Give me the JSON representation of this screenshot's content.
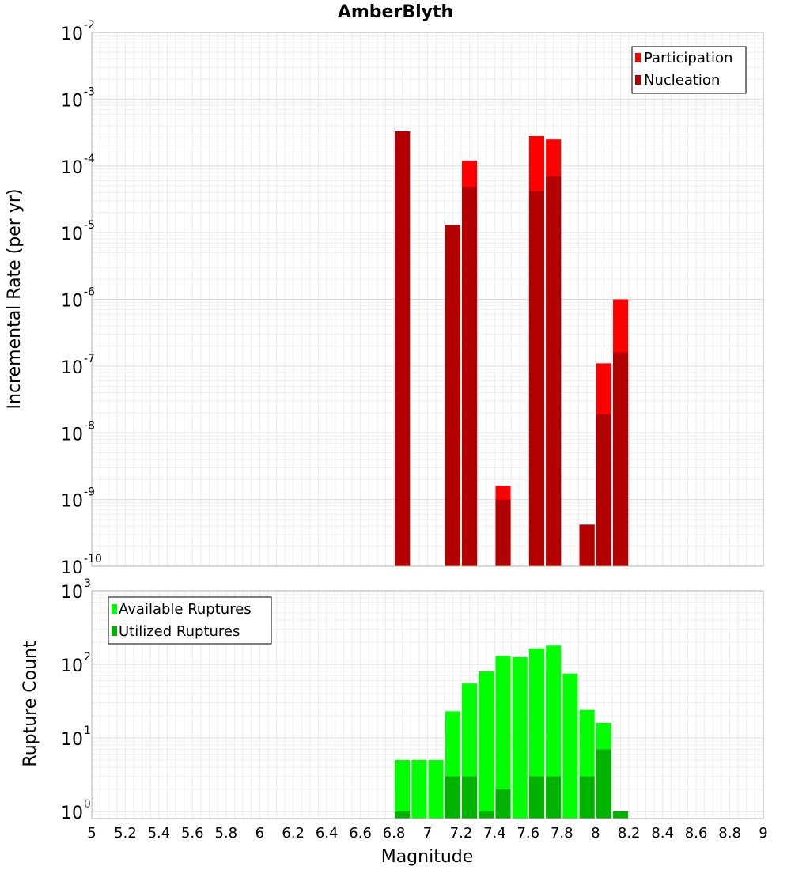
{
  "chart_data": [
    {
      "type": "bar",
      "title": "AmberBlyth",
      "xlabel": "",
      "ylabel": "Incremental Rate (per yr)",
      "xlim": [
        5,
        9
      ],
      "ylim": [
        1e-10,
        0.01
      ],
      "yscale": "log",
      "bar_width": 0.09,
      "grid": true,
      "legend_position": "top-right",
      "x_ticks": [],
      "y_ticks": [
        {
          "value": 1e-10,
          "base": "10",
          "exp": "-10"
        },
        {
          "value": 1e-09,
          "base": "10",
          "exp": "-9"
        },
        {
          "value": 1e-08,
          "base": "10",
          "exp": "-8"
        },
        {
          "value": 1e-07,
          "base": "10",
          "exp": "-7"
        },
        {
          "value": 1e-06,
          "base": "10",
          "exp": "-6"
        },
        {
          "value": 1e-05,
          "base": "10",
          "exp": "-5"
        },
        {
          "value": 0.0001,
          "base": "10",
          "exp": "-4"
        },
        {
          "value": 0.001,
          "base": "10",
          "exp": "-3"
        },
        {
          "value": 0.01,
          "base": "10",
          "exp": "-2"
        }
      ],
      "series": [
        {
          "name": "Participation",
          "color": "#ff0000",
          "points": [
            {
              "x": 6.85,
              "y": 0.00033
            },
            {
              "x": 7.15,
              "y": 1.3e-05
            },
            {
              "x": 7.25,
              "y": 0.00012
            },
            {
              "x": 7.45,
              "y": 1.6e-09
            },
            {
              "x": 7.65,
              "y": 0.00028
            },
            {
              "x": 7.75,
              "y": 0.00025
            },
            {
              "x": 7.95,
              "y": 4.2e-10
            },
            {
              "x": 8.05,
              "y": 1.1e-07
            },
            {
              "x": 8.15,
              "y": 1e-06
            }
          ]
        },
        {
          "name": "Nucleation",
          "color": "#b30000",
          "points": [
            {
              "x": 6.85,
              "y": 0.00033
            },
            {
              "x": 7.15,
              "y": 1.3e-05
            },
            {
              "x": 7.25,
              "y": 4.8e-05
            },
            {
              "x": 7.45,
              "y": 1e-09
            },
            {
              "x": 7.65,
              "y": 4.2e-05
            },
            {
              "x": 7.75,
              "y": 7e-05
            },
            {
              "x": 7.95,
              "y": 4.2e-10
            },
            {
              "x": 8.05,
              "y": 1.9e-08
            },
            {
              "x": 8.15,
              "y": 1.6e-07
            }
          ]
        }
      ]
    },
    {
      "type": "bar",
      "title": "",
      "xlabel": "Magnitude",
      "ylabel": "Rupture Count",
      "xlim": [
        5,
        9
      ],
      "ylim": [
        0.8,
        1000
      ],
      "yscale": "log",
      "bar_width": 0.09,
      "grid": true,
      "legend_position": "top-left",
      "x_ticks": [
        "5",
        "5.2",
        "5.4",
        "5.6",
        "5.8",
        "6",
        "6.2",
        "6.4",
        "6.6",
        "6.8",
        "7",
        "7.2",
        "7.4",
        "7.6",
        "7.8",
        "8",
        "8.2",
        "8.4",
        "8.6",
        "8.8",
        "9"
      ],
      "y_ticks": [
        {
          "value": 1,
          "base": "10",
          "exp": "0"
        },
        {
          "value": 10,
          "base": "10",
          "exp": "1"
        },
        {
          "value": 100,
          "base": "10",
          "exp": "2"
        },
        {
          "value": 1000,
          "base": "10",
          "exp": "3"
        }
      ],
      "series": [
        {
          "name": "Available Ruptures",
          "color": "#00ff00",
          "points": [
            {
              "x": 6.85,
              "y": 5
            },
            {
              "x": 6.95,
              "y": 5
            },
            {
              "x": 7.05,
              "y": 5
            },
            {
              "x": 7.15,
              "y": 23
            },
            {
              "x": 7.25,
              "y": 55
            },
            {
              "x": 7.35,
              "y": 80
            },
            {
              "x": 7.45,
              "y": 130
            },
            {
              "x": 7.55,
              "y": 125
            },
            {
              "x": 7.65,
              "y": 165
            },
            {
              "x": 7.75,
              "y": 180
            },
            {
              "x": 7.85,
              "y": 75
            },
            {
              "x": 7.95,
              "y": 24
            },
            {
              "x": 8.05,
              "y": 16
            }
          ]
        },
        {
          "name": "Utilized Ruptures",
          "color": "#00b300",
          "points": [
            {
              "x": 6.85,
              "y": 1
            },
            {
              "x": 7.15,
              "y": 3
            },
            {
              "x": 7.25,
              "y": 3
            },
            {
              "x": 7.35,
              "y": 1
            },
            {
              "x": 7.45,
              "y": 2
            },
            {
              "x": 7.65,
              "y": 3
            },
            {
              "x": 7.75,
              "y": 3
            },
            {
              "x": 7.95,
              "y": 3
            },
            {
              "x": 8.05,
              "y": 7
            },
            {
              "x": 8.15,
              "y": 1
            }
          ]
        }
      ]
    }
  ]
}
